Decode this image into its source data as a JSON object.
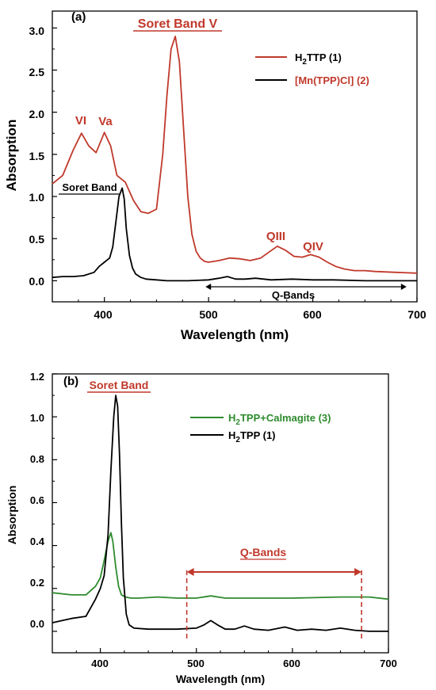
{
  "colors": {
    "red": "#c0392b",
    "black": "#000000",
    "green": "#2e8b2e"
  },
  "chart_data": [
    {
      "type": "line",
      "panel_label": "(a)",
      "xlabel": "Wavelength (nm)",
      "ylabel": "Absorption",
      "xlim": [
        350,
        700
      ],
      "ylim": [
        -0.25,
        3.2
      ],
      "x_ticks": [
        "400",
        "500",
        "600",
        "700"
      ],
      "y_ticks": [
        "0.0",
        "0.5",
        "1.0",
        "1.5",
        "2.0",
        "2.5",
        "3.0"
      ],
      "legend": {
        "position": "top-right",
        "entries": [
          {
            "label": "H",
            "sub": "2",
            "rest": "TTP (1)",
            "color": "#c0392b"
          },
          {
            "label": "[Mn(TPP)Cl] (2)",
            "sub": "",
            "rest": "",
            "color": "#000000"
          }
        ]
      },
      "annotations": {
        "soret_v": "Soret Band V",
        "vi": "VI",
        "va": "Va",
        "soret_band": "Soret Band",
        "qiii": "QIII",
        "qiv": "QIV",
        "q_bands": "Q-Bands",
        "q_bands_range": [
          497,
          690
        ]
      },
      "series": [
        {
          "name": "H2TTP (1)",
          "color": "#c0392b",
          "x": [
            350,
            360,
            370,
            378,
            385,
            392,
            400,
            406,
            412,
            420,
            428,
            435,
            442,
            450,
            456,
            460,
            464,
            468,
            472,
            476,
            480,
            484,
            488,
            492,
            496,
            500,
            510,
            520,
            530,
            540,
            550,
            558,
            566,
            574,
            582,
            590,
            598,
            606,
            614,
            622,
            630,
            640,
            650,
            660,
            680,
            700
          ],
          "y": [
            1.15,
            1.25,
            1.55,
            1.75,
            1.6,
            1.52,
            1.76,
            1.6,
            1.25,
            1.17,
            0.95,
            0.82,
            0.8,
            0.85,
            1.5,
            2.2,
            2.75,
            2.9,
            2.6,
            1.8,
            1.0,
            0.55,
            0.35,
            0.27,
            0.23,
            0.22,
            0.24,
            0.27,
            0.26,
            0.24,
            0.27,
            0.34,
            0.41,
            0.36,
            0.29,
            0.28,
            0.31,
            0.28,
            0.22,
            0.17,
            0.14,
            0.12,
            0.12,
            0.11,
            0.1,
            0.09
          ]
        },
        {
          "name": "[Mn(TPP)Cl] (2)",
          "color": "#000000",
          "x": [
            350,
            360,
            370,
            380,
            390,
            395,
            400,
            405,
            408,
            411,
            414,
            417,
            419,
            421,
            424,
            427,
            430,
            435,
            440,
            450,
            460,
            480,
            500,
            510,
            518,
            526,
            535,
            545,
            560,
            580,
            600,
            620,
            650,
            700
          ],
          "y": [
            0.04,
            0.05,
            0.05,
            0.06,
            0.1,
            0.17,
            0.22,
            0.27,
            0.4,
            0.7,
            1.0,
            1.1,
            0.97,
            0.62,
            0.3,
            0.15,
            0.08,
            0.04,
            0.02,
            0.01,
            0.0,
            0.0,
            0.01,
            0.03,
            0.05,
            0.02,
            0.02,
            0.03,
            0.01,
            0.02,
            0.01,
            0.01,
            0.0,
            0.0
          ]
        }
      ]
    },
    {
      "type": "line",
      "panel_label": "(b)",
      "xlabel": "Wavelength (nm)",
      "ylabel": "Absorption",
      "xlim": [
        350,
        700
      ],
      "ylim": [
        -0.1,
        1.2
      ],
      "x_ticks": [
        "400",
        "500",
        "600",
        "700"
      ],
      "y_ticks": [
        "0.0",
        "0.2",
        "0.4",
        "0.6",
        "0.8",
        "1.0",
        "1.2"
      ],
      "legend": {
        "position": "right",
        "entries": [
          {
            "label": "H",
            "sub": "2",
            "rest": "TPP+Calmagite (3)",
            "color": "#2e8b2e"
          },
          {
            "label": "H",
            "sub": "2",
            "rest": "TPP (1)",
            "color": "#000000"
          }
        ]
      },
      "annotations": {
        "soret_band": "Soret Band",
        "q_bands": "Q-Bands",
        "q_bands_range": [
          490,
          672
        ]
      },
      "series": [
        {
          "name": "H2TPP+Calmagite (3)",
          "color": "#2e8b2e",
          "x": [
            350,
            370,
            385,
            395,
            400,
            404,
            408,
            411,
            413,
            416,
            419,
            422,
            426,
            432,
            440,
            460,
            480,
            500,
            515,
            530,
            560,
            600,
            650,
            680,
            700
          ],
          "y": [
            0.18,
            0.17,
            0.17,
            0.21,
            0.25,
            0.33,
            0.42,
            0.46,
            0.42,
            0.3,
            0.21,
            0.17,
            0.16,
            0.155,
            0.155,
            0.16,
            0.155,
            0.155,
            0.165,
            0.155,
            0.155,
            0.155,
            0.16,
            0.16,
            0.15
          ]
        },
        {
          "name": "H2TPP (1)",
          "color": "#000000",
          "x": [
            350,
            360,
            370,
            385,
            395,
            400,
            404,
            408,
            411,
            414,
            416,
            418,
            420,
            422,
            424,
            427,
            430,
            435,
            450,
            480,
            500,
            508,
            515,
            522,
            530,
            540,
            550,
            560,
            575,
            592,
            605,
            620,
            635,
            650,
            665,
            680,
            700
          ],
          "y": [
            0.04,
            0.05,
            0.06,
            0.07,
            0.15,
            0.2,
            0.26,
            0.45,
            0.75,
            1.0,
            1.1,
            1.05,
            0.82,
            0.5,
            0.25,
            0.08,
            0.03,
            0.015,
            0.01,
            0.01,
            0.015,
            0.03,
            0.05,
            0.03,
            0.01,
            0.01,
            0.025,
            0.01,
            0.005,
            0.02,
            0.005,
            0.01,
            0.005,
            0.015,
            0.005,
            0.0,
            0.0
          ]
        }
      ]
    }
  ]
}
